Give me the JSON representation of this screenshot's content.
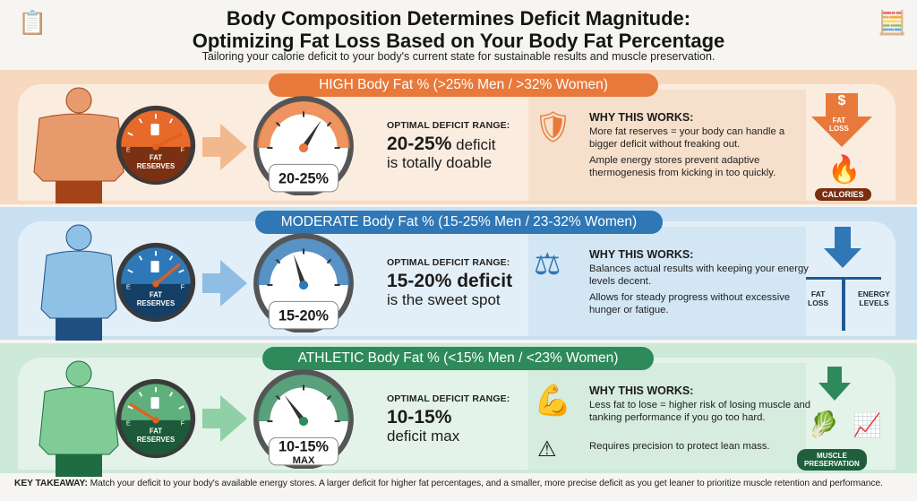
{
  "header": {
    "title_line1": "Body Composition Determines Deficit Magnitude:",
    "title_line2": "Optimizing Fat Loss Based on Your Body Fat Percentage",
    "subtitle": "Tailoring your calorie deficit to your body's current state for sustainable results and muscle preservation."
  },
  "common": {
    "optimal_label": "OPTIMAL DEFICIT RANGE:",
    "why_label": "WHY THIS WORKS:",
    "fuel_empty": "E",
    "fuel_full": "F",
    "fuel_label_1": "FAT",
    "fuel_label_2": "RESERVES"
  },
  "sections": [
    {
      "band_title": "HIGH Body Fat % (>25% Men / >32% Women)",
      "color": "#e8793a",
      "gauge_label": "20-25%",
      "deficit_bold": "20-25%",
      "deficit_rest": " deficit",
      "deficit_line2": "is totally doable",
      "why_p1": "More fat reserves = your body can handle a bigger deficit without freaking out.",
      "why_p2": "Ample energy stores prevent adaptive thermogenesis from kicking in too quickly.",
      "fuel_level": 0.85,
      "needle_level": 0.68,
      "icon": "shield-check-icon",
      "graphic": {
        "arrow_symbol": "$",
        "arrow_label_1": "FAT",
        "arrow_label_2": "LOSS",
        "flame_label": "CALORIES"
      }
    },
    {
      "band_title": "MODERATE Body Fat % (15-25% Men / 23-32% Women)",
      "color": "#2f77b5",
      "gauge_label": "15-20%",
      "deficit_bold": "15-20% deficit",
      "deficit_line2": "is the sweet spot",
      "why_p1": "Balances actual results with keeping your energy levels decent.",
      "why_p2": "Allows for steady progress without excessive hunger or fatigue.",
      "fuel_level": 0.78,
      "needle_level": 0.4,
      "icon": "balance-scale-icon",
      "graphic": {
        "left_label_1": "FAT",
        "left_label_2": "LOSS",
        "right_label_1": "ENERGY",
        "right_label_2": "LEVELS"
      }
    },
    {
      "band_title": "ATHLETIC Body Fat % (<15% Men / <23% Women)",
      "color": "#2e8a5b",
      "gauge_label_1": "10-15%",
      "gauge_label_2": "MAX",
      "deficit_bold": "10-15%",
      "deficit_line2": "deficit max",
      "why_p1": "Less fat to lose = higher risk of losing muscle and tanking performance if you go too hard.",
      "why_p2": "Requires precision to protect lean mass.",
      "fuel_level": 0.18,
      "needle_level": 0.3,
      "icon": "flexed-arm-icon",
      "graphic": {
        "badge_1": "MUSCLE",
        "badge_2": "PRESERVATION"
      }
    }
  ],
  "takeaway": {
    "label": "KEY TAKEAWAY:",
    "text": " Match your deficit to your body's available energy stores. A larger deficit for higher fat percentages, and a smaller, more precise deficit as you get leaner to prioritize muscle retention and performance."
  }
}
